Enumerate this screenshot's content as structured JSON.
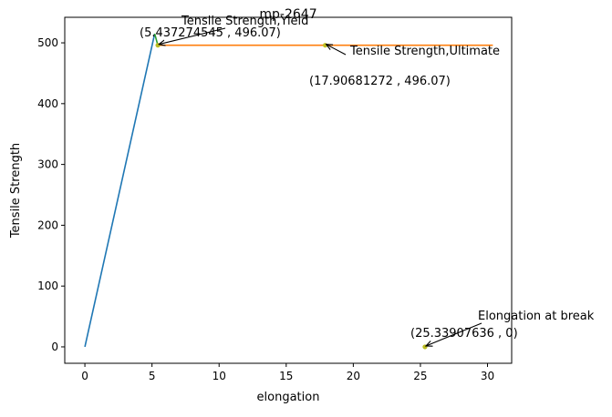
{
  "chart_data": {
    "type": "line",
    "title": "mp-2647",
    "xlabel": "elongation",
    "ylabel": "Tensile Strength",
    "xlim": [
      -1.5,
      31.8
    ],
    "ylim": [
      -27,
      542
    ],
    "xticks": [
      0,
      5,
      10,
      15,
      20,
      25,
      30
    ],
    "yticks": [
      0,
      100,
      200,
      300,
      400,
      500
    ],
    "grid": false,
    "series": [
      {
        "color": "#1f77b4",
        "x": [
          0,
          5.2
        ],
        "y": [
          0,
          515
        ]
      },
      {
        "color": "#2ca02c",
        "x": [
          5.2,
          5.437274545
        ],
        "y": [
          515,
          496.07
        ]
      },
      {
        "color": "#ff7f0e",
        "x": [
          5.437274545,
          30.4
        ],
        "y": [
          496.07,
          496.07
        ]
      }
    ],
    "points": [
      {
        "x": 5.437274545,
        "y": 496.07,
        "color": "#bcbd22"
      },
      {
        "x": 17.90681272,
        "y": 496.07,
        "color": "#bcbd22"
      },
      {
        "x": 25.33907636,
        "y": 0,
        "color": "#bcbd22"
      }
    ],
    "annotations": [
      {
        "label": "Tensile Strength,Yield",
        "coord_text": "(5.437274545 , 496.07)",
        "x": 5.437274545,
        "y": 496.07
      },
      {
        "label": "Tensile Strength,Ultimate",
        "coord_text": "(17.90681272 , 496.07)",
        "x": 17.90681272,
        "y": 496.07
      },
      {
        "label": "Elongation at break",
        "coord_text": "(25.33907636 , 0)",
        "x": 25.33907636,
        "y": 0
      }
    ]
  }
}
